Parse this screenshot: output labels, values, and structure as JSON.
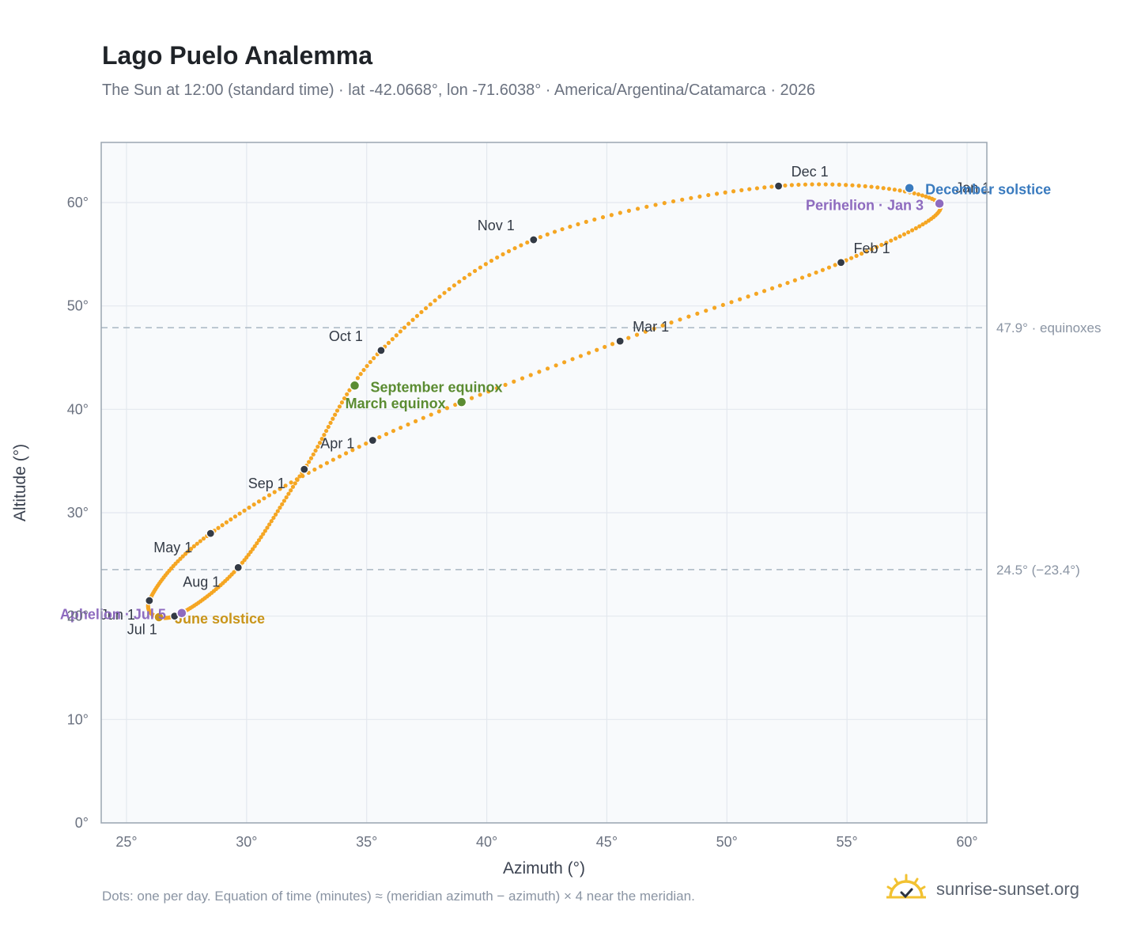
{
  "header": {
    "title": "Lago Puelo Analemma",
    "subtitle": "The Sun at 12:00 (standard time) · lat -42.0668°, lon -71.6038° · America/Argentina/Catamarca · 2026"
  },
  "footer": {
    "note": "Dots: one per day. Equation of time (minutes) ≈ (meridian azimuth − azimuth) × 4 near the meridian.",
    "brand": "sunrise-sunset.org"
  },
  "colors": {
    "curve": "#f5a623",
    "month_marker": "#333a45",
    "solstice_dec": "#3a7bbf",
    "solstice_jun": "#c9951a",
    "equinox": "#5b8c32",
    "apsis": "#8e6bbf",
    "reference_line": "#a9b7c2",
    "plot_bg": "#f8fafc",
    "grid": "#e3e8ee",
    "frame": "#9aa5b1"
  },
  "chart_data": {
    "type": "scatter",
    "title": "Lago Puelo Analemma",
    "xlabel": "Azimuth (°)",
    "ylabel": "Altitude (°)",
    "xlim": [
      24,
      61
    ],
    "ylim": [
      0,
      66
    ],
    "x_ticks": [
      "25°",
      "30°",
      "35°",
      "40°",
      "45°",
      "50°",
      "55°",
      "60°"
    ],
    "x_tick_values": [
      25,
      30,
      35,
      40,
      45,
      50,
      55,
      60
    ],
    "y_ticks": [
      "0°",
      "10°",
      "20°",
      "30°",
      "40°",
      "50°",
      "60°"
    ],
    "y_tick_values": [
      0,
      10,
      20,
      30,
      40,
      50,
      60
    ],
    "grid": true,
    "series_note": "one dot per day",
    "month_markers": [
      {
        "label": "Jan 1",
        "x": 58.85,
        "y": 59.9
      },
      {
        "label": "Feb 1",
        "x": 54.75,
        "y": 54.2
      },
      {
        "label": "Mar 1",
        "x": 45.55,
        "y": 46.6
      },
      {
        "label": "Apr 1",
        "x": 35.25,
        "y": 37.0
      },
      {
        "label": "May 1",
        "x": 28.5,
        "y": 28.0
      },
      {
        "label": "Jun 1",
        "x": 25.95,
        "y": 21.5
      },
      {
        "label": "Jul 1",
        "x": 27.0,
        "y": 20.0
      },
      {
        "label": "Aug 1",
        "x": 29.65,
        "y": 24.7
      },
      {
        "label": "Sep 1",
        "x": 32.4,
        "y": 34.2
      },
      {
        "label": "Oct 1",
        "x": 35.6,
        "y": 45.7
      },
      {
        "label": "Nov 1",
        "x": 41.95,
        "y": 56.4
      },
      {
        "label": "Dec 1",
        "x": 52.15,
        "y": 61.6
      }
    ],
    "events": [
      {
        "label": "December solstice",
        "x": 57.6,
        "y": 61.4,
        "kind": "solstice_dec"
      },
      {
        "label": "June solstice",
        "x": 26.35,
        "y": 19.9,
        "kind": "solstice_jun"
      },
      {
        "label": "March equinox",
        "x": 38.95,
        "y": 40.7,
        "kind": "equinox"
      },
      {
        "label": "September equinox",
        "x": 34.5,
        "y": 42.3,
        "kind": "equinox"
      },
      {
        "label": "Perihelion · Jan 3",
        "x": 58.85,
        "y": 59.9,
        "kind": "apsis"
      },
      {
        "label": "Aphelion · Jul 5",
        "x": 27.3,
        "y": 20.3,
        "kind": "apsis"
      }
    ],
    "reference_lines": [
      {
        "y": 47.9,
        "label": "47.9° · equinoxes"
      },
      {
        "y": 24.5,
        "label": "24.5° (−23.4°)"
      }
    ]
  }
}
